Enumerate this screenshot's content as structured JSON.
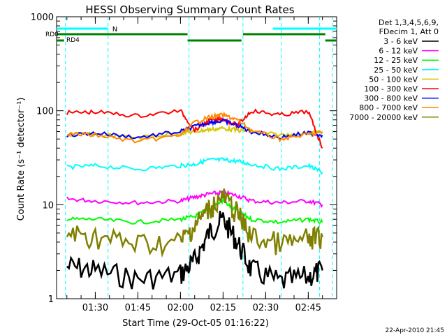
{
  "chart_data": {
    "type": "line",
    "title": "HESSI Observing Summary Count Rates",
    "xlabel": "Start Time (29-Oct-05 01:16:22)",
    "ylabel": "Count Rate (s⁻¹ detector⁻¹)",
    "y_scale": "log",
    "ylim": [
      1,
      1000
    ],
    "xlim": [
      "01:16:22",
      "02:55:00"
    ],
    "y_ticks": [
      "1",
      "10",
      "100",
      "1000"
    ],
    "x_ticks": [
      "01:30",
      "01:45",
      "02:00",
      "02:15",
      "02:30",
      "02:45"
    ],
    "legend_header": [
      "Det 1,3,4,5,6,9,",
      "FDecim 1, Att 0"
    ],
    "legend_placement": "right",
    "footer": "22-Apr-2010 21:45",
    "flags": [
      {
        "label": "N",
        "color": "#00ffff",
        "segments": [
          [
            "01:16:22",
            "01:34:30"
          ],
          [
            "02:32:30",
            "02:55:00"
          ]
        ]
      },
      {
        "label": "RD0",
        "color": "#008000",
        "segments": [
          [
            "01:16:22",
            "02:02:30"
          ],
          [
            "02:22:00",
            "02:51:00"
          ]
        ]
      },
      {
        "label": "RD4",
        "color": "#008000",
        "segments": [
          [
            "01:16:22",
            "01:19:00"
          ],
          [
            "02:02:30",
            "02:21:30"
          ],
          [
            "02:51:00",
            "02:55:00"
          ]
        ]
      }
    ],
    "gaps": [
      "01:19:30",
      "01:34:30",
      "02:03:00",
      "02:22:00",
      "02:35:30",
      "02:49:00",
      "02:53:30"
    ],
    "series": [
      {
        "name": "3 - 6 keV",
        "color": "#000000",
        "x": [
          "01:20",
          "01:30",
          "01:45",
          "02:00",
          "02:05",
          "02:10",
          "02:15",
          "02:20",
          "02:25",
          "02:35",
          "02:45",
          "02:50"
        ],
        "y": [
          2.2,
          2.0,
          1.6,
          1.8,
          2.5,
          5.0,
          7.0,
          4.0,
          2.0,
          1.5,
          1.7,
          2.0
        ]
      },
      {
        "name": "6 - 12 keV",
        "color": "#ff00ff",
        "x": [
          "01:20",
          "01:30",
          "01:45",
          "02:00",
          "02:05",
          "02:10",
          "02:15",
          "02:20",
          "02:25",
          "02:35",
          "02:45",
          "02:50"
        ],
        "y": [
          11.5,
          11.0,
          10.5,
          11.0,
          12.0,
          13.0,
          13.5,
          12.5,
          11.0,
          10.5,
          11.0,
          10.0
        ]
      },
      {
        "name": "12 - 25 keV",
        "color": "#00ff00",
        "x": [
          "01:20",
          "01:30",
          "01:45",
          "02:00",
          "02:05",
          "02:10",
          "02:15",
          "02:20",
          "02:25",
          "02:35",
          "02:45",
          "02:50"
        ],
        "y": [
          7.0,
          7.0,
          6.5,
          7.0,
          7.5,
          9.0,
          11.0,
          8.5,
          7.0,
          6.5,
          7.0,
          6.5
        ]
      },
      {
        "name": "25 - 50 keV",
        "color": "#00ffff",
        "x": [
          "01:20",
          "01:30",
          "01:45",
          "02:00",
          "02:05",
          "02:10",
          "02:15",
          "02:20",
          "02:25",
          "02:35",
          "02:45",
          "02:50"
        ],
        "y": [
          25,
          26,
          24,
          26,
          27,
          30,
          30,
          29,
          27,
          24,
          26,
          22
        ]
      },
      {
        "name": "50 - 100 keV",
        "color": "#d4c800",
        "x": [
          "01:20",
          "01:30",
          "01:45",
          "02:00",
          "02:05",
          "02:10",
          "02:15",
          "02:20",
          "02:25",
          "02:35",
          "02:45",
          "02:50"
        ],
        "y": [
          55,
          56,
          52,
          58,
          60,
          63,
          65,
          62,
          60,
          55,
          58,
          60
        ]
      },
      {
        "name": "100 - 300 keV",
        "color": "#ff0000",
        "x": [
          "01:20",
          "01:30",
          "01:45",
          "02:00",
          "02:05",
          "02:10",
          "02:15",
          "02:20",
          "02:25",
          "02:35",
          "02:45",
          "02:50"
        ],
        "y": [
          95,
          97,
          88,
          100,
          62,
          78,
          82,
          70,
          100,
          90,
          98,
          40
        ]
      },
      {
        "name": "300 - 800 keV",
        "color": "#0000ff",
        "x": [
          "01:20",
          "01:30",
          "01:45",
          "02:00",
          "02:05",
          "02:10",
          "02:15",
          "02:20",
          "02:25",
          "02:35",
          "02:45",
          "02:50"
        ],
        "y": [
          55,
          58,
          52,
          60,
          68,
          75,
          78,
          70,
          60,
          52,
          58,
          55
        ]
      },
      {
        "name": "800 - 7000 keV",
        "color": "#ff8800",
        "x": [
          "01:20",
          "01:30",
          "01:45",
          "02:00",
          "02:05",
          "02:10",
          "02:15",
          "02:20",
          "02:25",
          "02:35",
          "02:45",
          "02:50"
        ],
        "y": [
          57,
          55,
          47,
          55,
          75,
          85,
          90,
          80,
          62,
          50,
          56,
          58
        ]
      },
      {
        "name": "7000 - 20000 keV",
        "color": "#808000",
        "x": [
          "01:20",
          "01:30",
          "01:45",
          "02:00",
          "02:05",
          "02:10",
          "02:15",
          "02:20",
          "02:25",
          "02:35",
          "02:45",
          "02:50"
        ],
        "y": [
          5.0,
          4.5,
          3.8,
          4.0,
          6.0,
          9.0,
          12.0,
          8.0,
          4.5,
          3.8,
          4.2,
          4.5
        ]
      }
    ]
  }
}
